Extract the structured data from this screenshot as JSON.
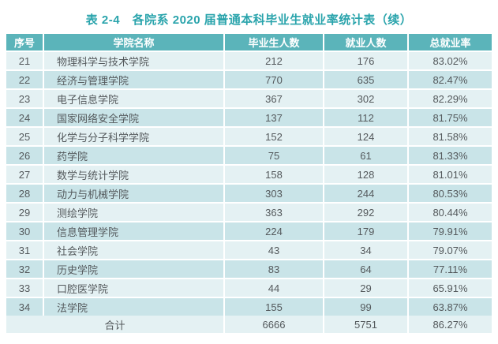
{
  "page": {
    "title": "表 2-4　各院系 2020 届普通本科毕业生就业率统计表（续）"
  },
  "colors": {
    "accent_teal": "#2aa4ac",
    "header_bg": "#5bb4ba",
    "header_text": "#ffffff",
    "row_light_bg": "#e4f1f3",
    "row_dark_bg": "#c9e4e8",
    "cell_text": "#54595c"
  },
  "table": {
    "headers": [
      "序号",
      "学院名称",
      "毕业生人数",
      "就业人数",
      "总就业率"
    ],
    "rows": [
      {
        "no": "21",
        "name": "物理科学与技术学院",
        "graduates": "212",
        "employed": "176",
        "rate": "83.02%"
      },
      {
        "no": "22",
        "name": "经济与管理学院",
        "graduates": "770",
        "employed": "635",
        "rate": "82.47%"
      },
      {
        "no": "23",
        "name": "电子信息学院",
        "graduates": "367",
        "employed": "302",
        "rate": "82.29%"
      },
      {
        "no": "24",
        "name": "国家网络安全学院",
        "graduates": "137",
        "employed": "112",
        "rate": "81.75%"
      },
      {
        "no": "25",
        "name": "化学与分子科学学院",
        "graduates": "152",
        "employed": "124",
        "rate": "81.58%"
      },
      {
        "no": "26",
        "name": "药学院",
        "graduates": "75",
        "employed": "61",
        "rate": "81.33%"
      },
      {
        "no": "27",
        "name": "数学与统计学院",
        "graduates": "158",
        "employed": "128",
        "rate": "81.01%"
      },
      {
        "no": "28",
        "name": "动力与机械学院",
        "graduates": "303",
        "employed": "244",
        "rate": "80.53%"
      },
      {
        "no": "29",
        "name": "测绘学院",
        "graduates": "363",
        "employed": "292",
        "rate": "80.44%"
      },
      {
        "no": "30",
        "name": "信息管理学院",
        "graduates": "224",
        "employed": "179",
        "rate": "79.91%"
      },
      {
        "no": "31",
        "name": "社会学院",
        "graduates": "43",
        "employed": "34",
        "rate": "79.07%"
      },
      {
        "no": "32",
        "name": "历史学院",
        "graduates": "83",
        "employed": "64",
        "rate": "77.11%"
      },
      {
        "no": "33",
        "name": "口腔医学院",
        "graduates": "44",
        "employed": "29",
        "rate": "65.91%"
      },
      {
        "no": "34",
        "name": "法学院",
        "graduates": "155",
        "employed": "99",
        "rate": "63.87%"
      }
    ],
    "total": {
      "label": "合计",
      "graduates": "6666",
      "employed": "5751",
      "rate": "86.27%"
    }
  }
}
